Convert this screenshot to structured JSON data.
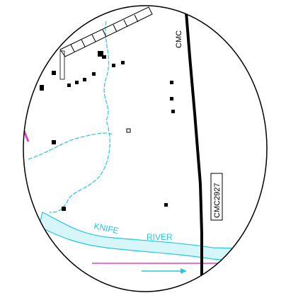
{
  "labels": {
    "road_top": "CMC",
    "road_box": "CMC2927",
    "river_first": "KNIFE",
    "river_second": "RIVER"
  }
}
